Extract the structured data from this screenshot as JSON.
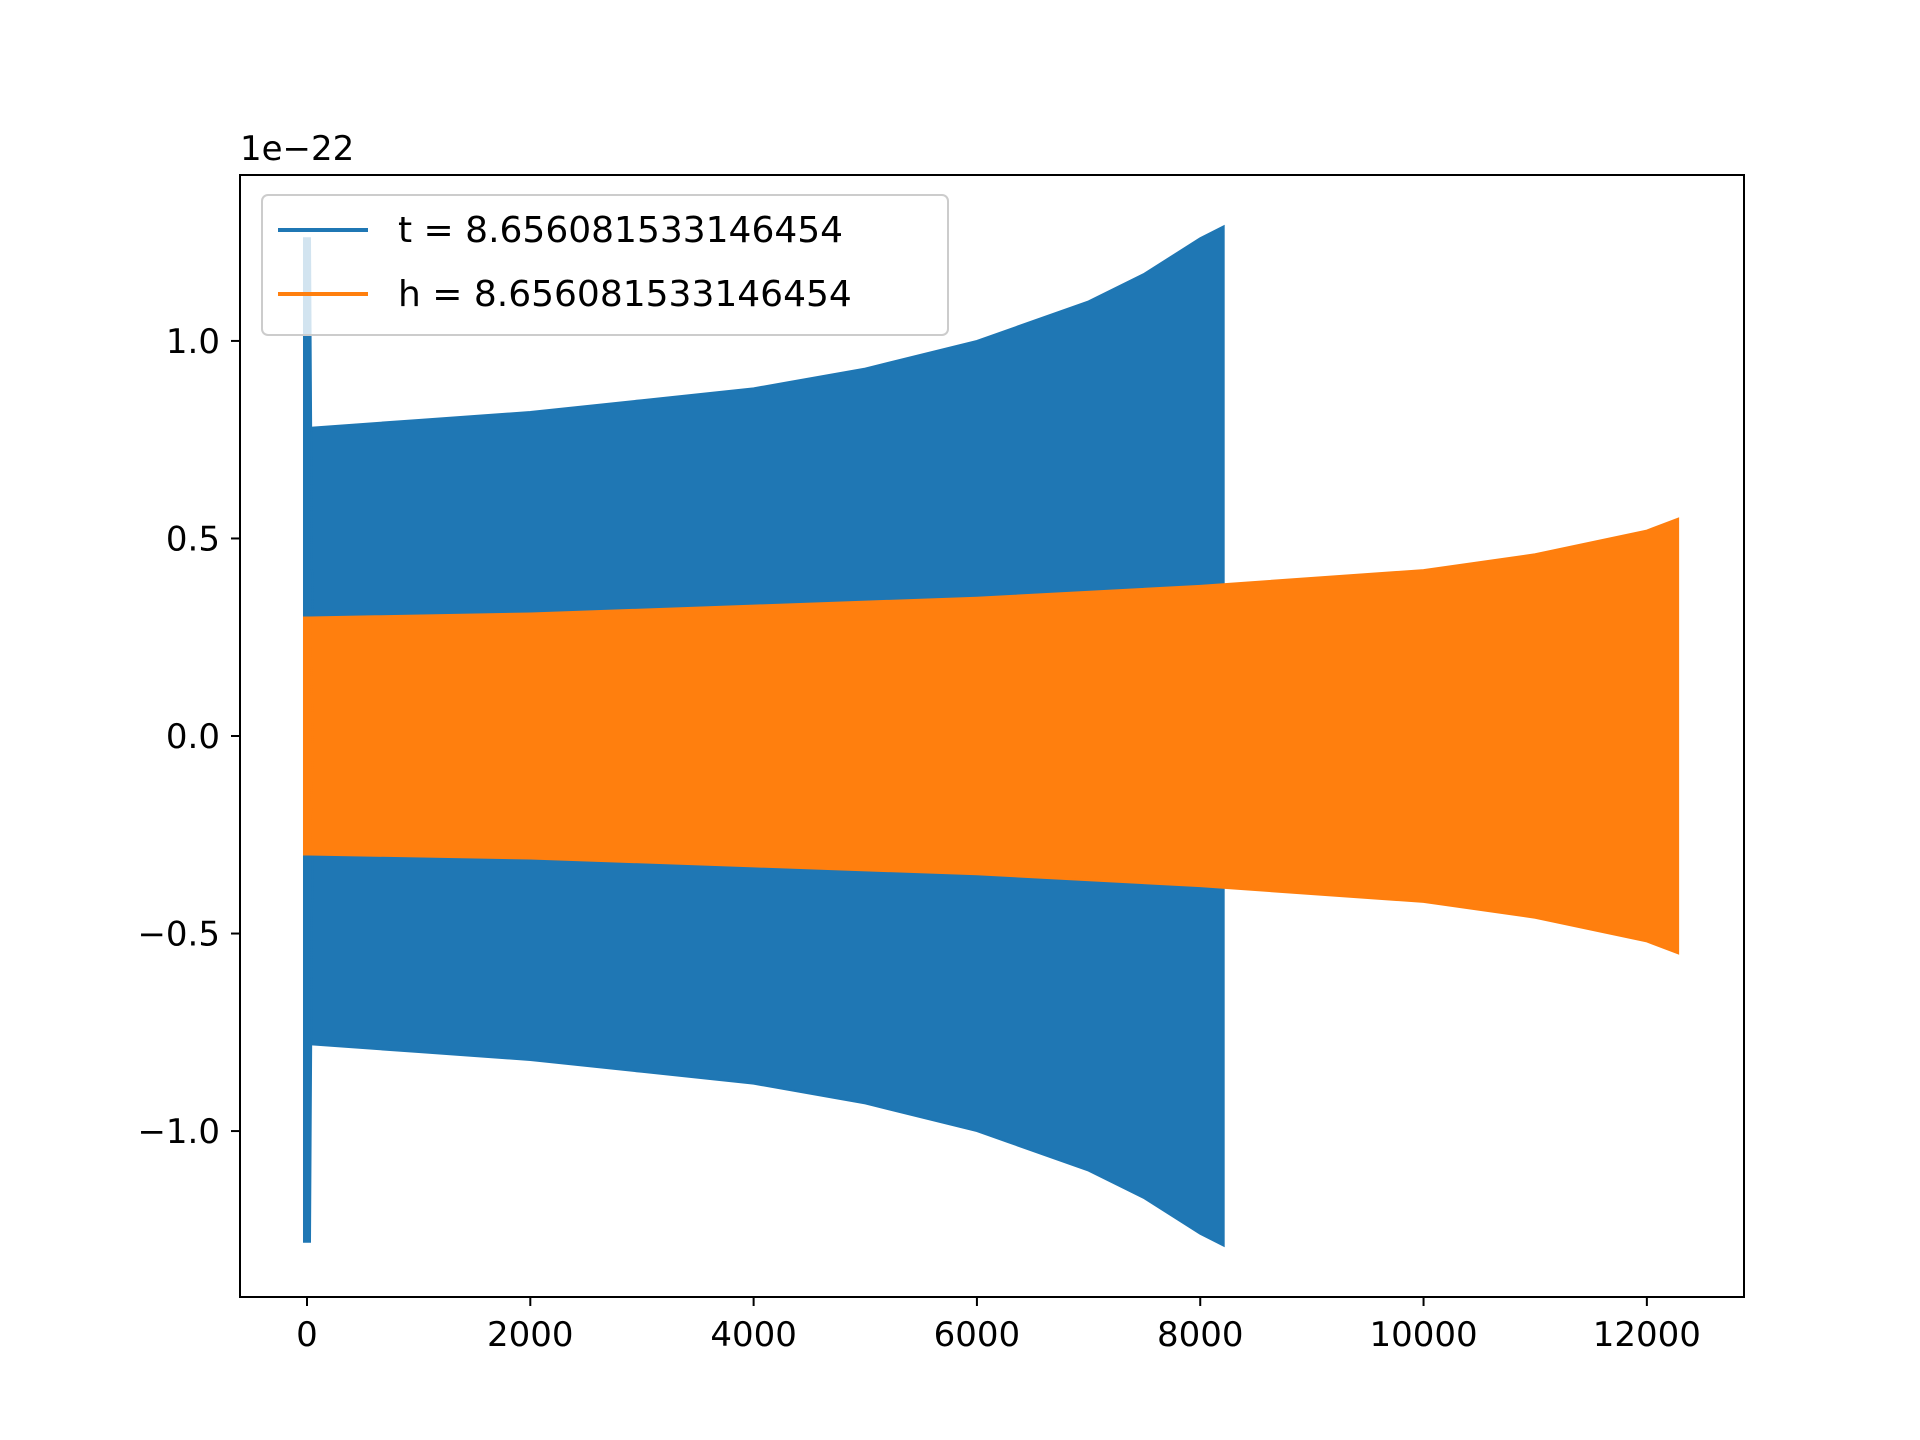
{
  "chart_data": {
    "type": "line",
    "title": "",
    "xlabel": "",
    "ylabel": "",
    "y_offset_text": "1e−22",
    "xlim": [
      -600,
      12870
    ],
    "ylim": [
      -1.42,
      1.42
    ],
    "x_ticks": [
      {
        "value": 0,
        "label": "0"
      },
      {
        "value": 2000,
        "label": "2000"
      },
      {
        "value": 4000,
        "label": "4000"
      },
      {
        "value": 6000,
        "label": "6000"
      },
      {
        "value": 8000,
        "label": "8000"
      },
      {
        "value": 10000,
        "label": "10000"
      },
      {
        "value": 12000,
        "label": "12000"
      }
    ],
    "y_ticks": [
      {
        "value": -1.0,
        "label": "−1.0"
      },
      {
        "value": -0.5,
        "label": "−0.5"
      },
      {
        "value": 0.0,
        "label": "0.0"
      },
      {
        "value": 0.5,
        "label": "0.5"
      },
      {
        "value": 1.0,
        "label": "1.0"
      }
    ],
    "grid": false,
    "legend_position": "upper-left",
    "series": [
      {
        "name": "t = 8.656081533146454",
        "color": "#1f77b4",
        "start_spike": {
          "x": 0,
          "max": 1.26,
          "min": -1.28
        },
        "envelope_upper": [
          [
            20,
            0.78
          ],
          [
            1000,
            0.8
          ],
          [
            2000,
            0.82
          ],
          [
            3000,
            0.85
          ],
          [
            4000,
            0.88
          ],
          [
            5000,
            0.93
          ],
          [
            6000,
            1.0
          ],
          [
            7000,
            1.1
          ],
          [
            7500,
            1.17
          ],
          [
            8000,
            1.26
          ],
          [
            8210,
            1.29
          ]
        ],
        "envelope_lower": [
          [
            20,
            -0.78
          ],
          [
            1000,
            -0.8
          ],
          [
            2000,
            -0.82
          ],
          [
            3000,
            -0.85
          ],
          [
            4000,
            -0.88
          ],
          [
            5000,
            -0.93
          ],
          [
            6000,
            -1.0
          ],
          [
            7000,
            -1.1
          ],
          [
            7500,
            -1.17
          ],
          [
            8000,
            -1.26
          ],
          [
            8210,
            -1.29
          ]
        ]
      },
      {
        "name": "h = 8.656081533146454",
        "color": "#ff7f0e",
        "start_spike": {
          "x": 0,
          "max": 0.3,
          "min": -0.3
        },
        "envelope_upper": [
          [
            20,
            0.3
          ],
          [
            2000,
            0.31
          ],
          [
            4000,
            0.33
          ],
          [
            6000,
            0.35
          ],
          [
            8000,
            0.38
          ],
          [
            10000,
            0.42
          ],
          [
            11000,
            0.46
          ],
          [
            12000,
            0.52
          ],
          [
            12280,
            0.55
          ]
        ],
        "envelope_lower": [
          [
            20,
            -0.3
          ],
          [
            2000,
            -0.31
          ],
          [
            4000,
            -0.33
          ],
          [
            6000,
            -0.35
          ],
          [
            8000,
            -0.38
          ],
          [
            10000,
            -0.42
          ],
          [
            11000,
            -0.46
          ],
          [
            12000,
            -0.52
          ],
          [
            12280,
            -0.55
          ]
        ]
      }
    ]
  }
}
